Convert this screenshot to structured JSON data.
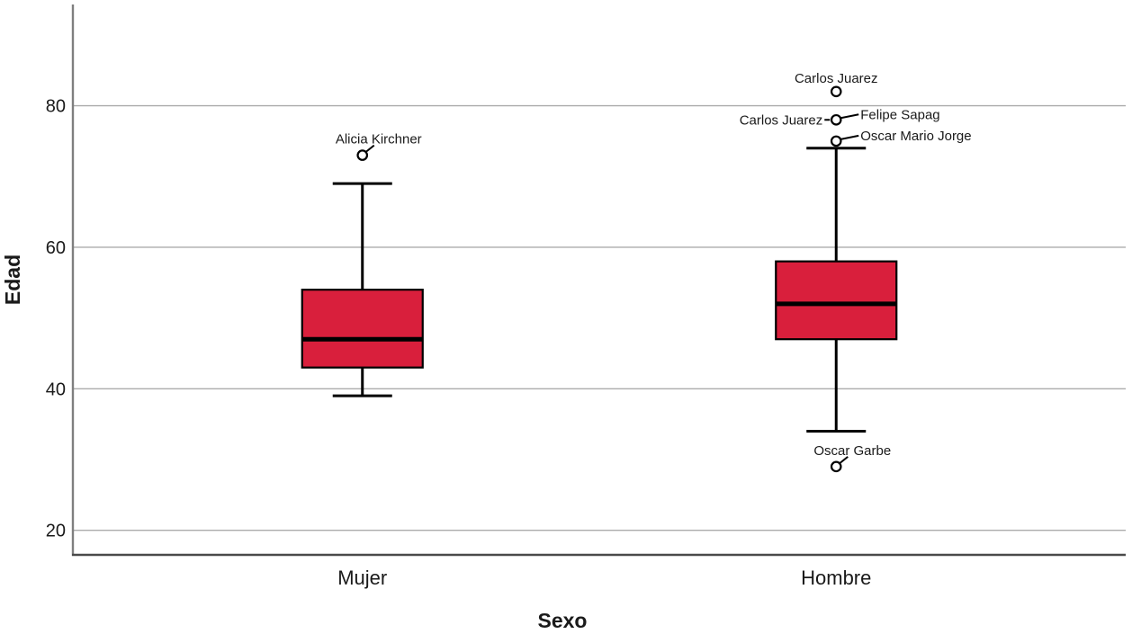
{
  "chart_data": {
    "type": "boxplot",
    "title": "",
    "xlabel": "Sexo",
    "ylabel": "Edad",
    "categories": [
      "Mujer",
      "Hombre"
    ],
    "yticks": [
      80,
      60,
      40,
      20
    ],
    "ylim": [
      16.4,
      94.3
    ],
    "grid": true,
    "legend": "none",
    "series": [
      {
        "category": "Mujer",
        "whisker_low": 39,
        "q1": 43,
        "median": 47,
        "q3": 54,
        "whisker_high": 69,
        "outliers": [
          {
            "value": 73,
            "label": "Alicia Kirchner",
            "label_side": "above-tail"
          }
        ]
      },
      {
        "category": "Hombre",
        "whisker_low": 34,
        "q1": 47,
        "median": 52,
        "q3": 58,
        "whisker_high": 74,
        "outliers": [
          {
            "value": 82,
            "label": "Carlos Juarez",
            "label_side": "above"
          },
          {
            "value": 78,
            "label": "Carlos Juarez",
            "label_side": "left"
          },
          {
            "value": 78,
            "label": "Felipe Sapag",
            "label_side": "right"
          },
          {
            "value": 75,
            "label": "Oscar Mario Jorge",
            "label_side": "right"
          },
          {
            "value": 29,
            "label": "Oscar Garbe",
            "label_side": "above-tail"
          }
        ]
      }
    ],
    "colors": {
      "box_fill": "#D91F3C",
      "box_border": "#000000",
      "median": "#000000",
      "whisker": "#000000",
      "outlier_stroke": "#000000",
      "outlier_fill": "#ffffff",
      "gridline": "#ababab",
      "y_axis_line": "#7f7f7f",
      "x_axis_line": "#4a4a4a",
      "text": "#1a1a1a"
    }
  }
}
